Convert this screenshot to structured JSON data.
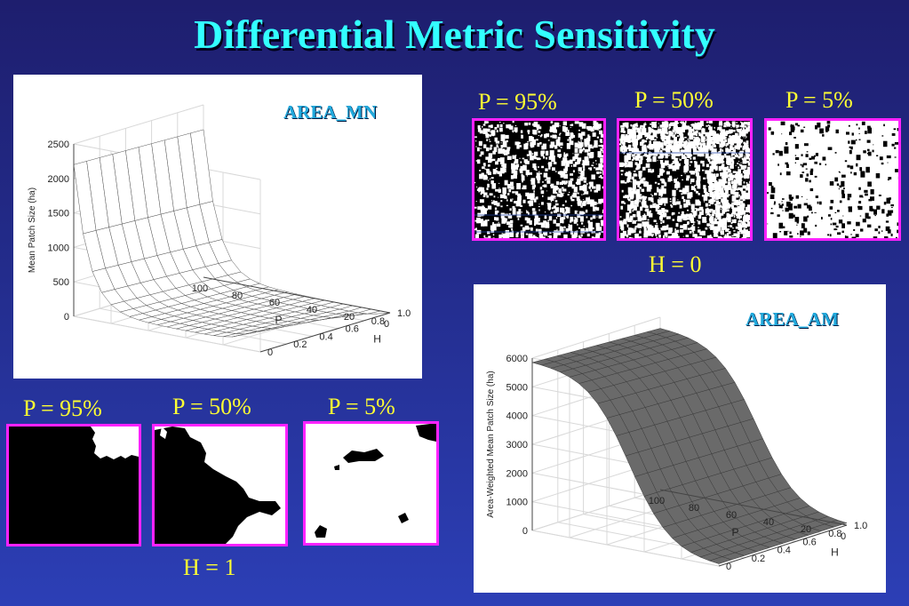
{
  "title": "Differential Metric Sensitivity",
  "chart_data": [
    {
      "type": "surface3d",
      "title": "AREA_MN",
      "xlabel": "P",
      "ylabel": "H",
      "zlabel": "Mean Patch Size (ha)",
      "x_ticks": [
        "100",
        "80",
        "60",
        "40",
        "20",
        "0"
      ],
      "y_ticks": [
        "0",
        "0.2",
        "0.4",
        "0.6",
        "0.8",
        "1.0"
      ],
      "z_ticks": [
        "0",
        "500",
        "1000",
        "1500",
        "2000",
        "2500"
      ],
      "xlim": [
        100,
        0
      ],
      "ylim": [
        0,
        1.0
      ],
      "zlim": [
        0,
        2500
      ],
      "grid": true,
      "surface_color": "#ffffff",
      "description_values": {
        "P": [
          100,
          90,
          80,
          70,
          60,
          50,
          40,
          30,
          20,
          10,
          0
        ],
        "H_0": [
          2100,
          700,
          350,
          200,
          150,
          120,
          110,
          120,
          160,
          250,
          700
        ],
        "H_1": [
          1700,
          500,
          200,
          80,
          40,
          20,
          10,
          5,
          3,
          2,
          1
        ]
      }
    },
    {
      "type": "surface3d",
      "title": "AREA_AM",
      "xlabel": "P",
      "ylabel": "H",
      "zlabel": "Area-Weighted Mean Patch Size (ha)",
      "x_ticks": [
        "100",
        "80",
        "60",
        "40",
        "20",
        "0"
      ],
      "y_ticks": [
        "0",
        "0.2",
        "0.4",
        "0.6",
        "0.8",
        "1.0"
      ],
      "z_ticks": [
        "0",
        "1000",
        "2000",
        "3000",
        "4000",
        "5000",
        "6000"
      ],
      "xlim": [
        100,
        0
      ],
      "ylim": [
        0,
        1.0
      ],
      "zlim": [
        0,
        6000
      ],
      "grid": true,
      "surface_color": "#666666",
      "description_values": {
        "P": [
          100,
          90,
          80,
          70,
          60,
          50,
          40,
          30,
          20,
          10,
          0
        ],
        "AM": [
          5900,
          5700,
          5200,
          4500,
          3700,
          2800,
          1900,
          1100,
          500,
          150,
          10
        ]
      }
    }
  ],
  "top_group": {
    "labels": [
      "P = 95%",
      "P = 50%",
      "P = 5%"
    ],
    "h_label": "H = 0"
  },
  "bottom_group": {
    "labels": [
      "P = 95%",
      "P = 50%",
      "P = 5%"
    ],
    "h_label": "H = 1"
  }
}
